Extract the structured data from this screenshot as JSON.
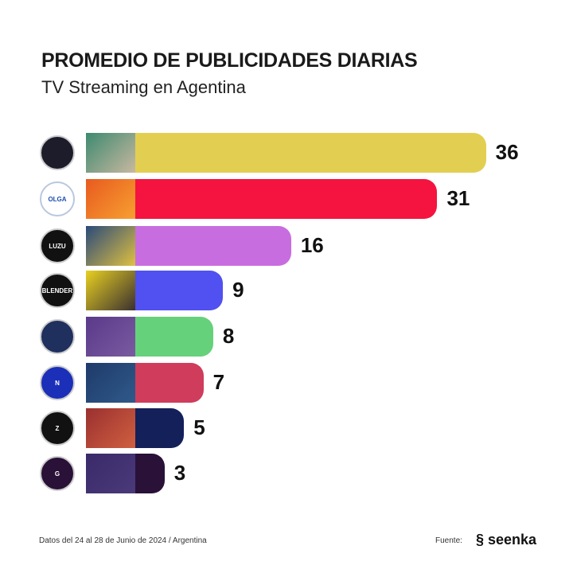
{
  "header": {
    "title": "PROMEDIO DE PUBLICIDADES DIARIAS",
    "subtitle": "TV Streaming en Agentina"
  },
  "chart_data": {
    "type": "bar",
    "orientation": "horizontal",
    "title": "PROMEDIO DE PUBLICIDADES DIARIAS",
    "subtitle": "TV Streaming en Agentina",
    "values": [
      36,
      31,
      16,
      9,
      8,
      7,
      5,
      3
    ],
    "logo_text": [
      "",
      "OLGA",
      "LUZU",
      "BLENDER",
      "",
      "N",
      "Z",
      "G"
    ],
    "colors": [
      "#e2cf52",
      "#f5133f",
      "#c86de0",
      "#5150f0",
      "#66d17b",
      "#cf3c5c",
      "#14205a",
      "#2a1138"
    ],
    "logo_bg": [
      "#1c1c2a",
      "#ffffff",
      "#111111",
      "#111111",
      "#1f2f5e",
      "#1b2fb8",
      "#111111",
      "#2a1138"
    ],
    "thumb_colors": [
      [
        "#3d8a70",
        "#c9b8a0"
      ],
      [
        "#e85a20",
        "#f7a030"
      ],
      [
        "#2a4a7a",
        "#e0c040"
      ],
      [
        "#e8d020",
        "#3a3030"
      ],
      [
        "#5a3a8a",
        "#7a5aa0"
      ],
      [
        "#1e3a6a",
        "#2f5a8a"
      ],
      [
        "#9a3030",
        "#d06040"
      ],
      [
        "#3a2a6a",
        "#4a3a7a"
      ]
    ],
    "grid": false,
    "legend": "none"
  },
  "footer": {
    "note": "Datos del 24 al 28 de Junio de 2024 / Argentina",
    "source_label": "Fuente:",
    "brand": "seenka"
  }
}
